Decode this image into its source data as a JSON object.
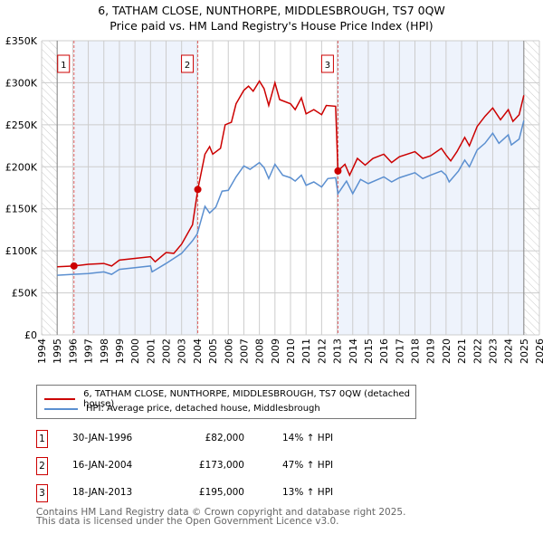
{
  "title": "6, TATHAM CLOSE, NUNTHORPE, MIDDLESBROUGH, TS7 0QW",
  "subtitle": "Price paid vs. HM Land Registry's House Price Index (HPI)",
  "chart_data": {
    "type": "line",
    "ylim": [
      0,
      350000
    ],
    "xlim": [
      1994,
      2026
    ],
    "yticks": [
      {
        "v": 0,
        "label": "£0"
      },
      {
        "v": 50000,
        "label": "£50K"
      },
      {
        "v": 100000,
        "label": "£100K"
      },
      {
        "v": 150000,
        "label": "£150K"
      },
      {
        "v": 200000,
        "label": "£200K"
      },
      {
        "v": 250000,
        "label": "£250K"
      },
      {
        "v": 300000,
        "label": "£300K"
      },
      {
        "v": 350000,
        "label": "£350K"
      }
    ],
    "xticks": [
      "1994",
      "1995",
      "1996",
      "1997",
      "1998",
      "1999",
      "2000",
      "2001",
      "2002",
      "2003",
      "2004",
      "2005",
      "2006",
      "2007",
      "2008",
      "2009",
      "2010",
      "2011",
      "2012",
      "2013",
      "2014",
      "2015",
      "2016",
      "2017",
      "2018",
      "2019",
      "2020",
      "2021",
      "2022",
      "2023",
      "2024",
      "2025",
      "2026"
    ],
    "data_range": [
      1995,
      2025
    ],
    "shaded_bands": [
      [
        1996.08,
        2004.04
      ],
      [
        2013.05,
        2025
      ]
    ],
    "series": [
      {
        "name": "6, TATHAM CLOSE, NUNTHORPE, MIDDLESBROUGH, TS7 0QW (detached house)",
        "color": "#cc0000",
        "x": [
          1995,
          1996.08,
          1997,
          1998,
          1998.5,
          1999,
          2000,
          2001,
          2001.3,
          2002,
          2002.5,
          2003,
          2003.7,
          2004.04,
          2004.5,
          2004.8,
          2005,
          2005.5,
          2005.8,
          2006.2,
          2006.5,
          2007,
          2007.3,
          2007.6,
          2008,
          2008.3,
          2008.6,
          2009,
          2009.3,
          2010,
          2010.3,
          2010.7,
          2011,
          2011.5,
          2012,
          2012.3,
          2012.9,
          2013.05,
          2013.5,
          2013.8,
          2014.3,
          2014.8,
          2015.3,
          2016,
          2016.5,
          2017,
          2018,
          2018.5,
          2019,
          2019.7,
          2020,
          2020.3,
          2020.7,
          2021.2,
          2021.5,
          2022,
          2022.5,
          2023,
          2023.5,
          2024,
          2024.3,
          2024.7,
          2025
        ],
        "y": [
          81000,
          82000,
          84000,
          85000,
          82000,
          89000,
          91000,
          93000,
          87000,
          98000,
          97000,
          108000,
          131000,
          173000,
          215000,
          224000,
          215000,
          222000,
          250000,
          253000,
          275000,
          291000,
          296000,
          290000,
          302000,
          293000,
          273000,
          300000,
          280000,
          275000,
          268000,
          282000,
          263000,
          268000,
          262000,
          273000,
          272000,
          195000,
          203000,
          190000,
          210000,
          202000,
          210000,
          215000,
          205000,
          212000,
          218000,
          210000,
          213000,
          222000,
          214000,
          207000,
          218000,
          235000,
          225000,
          248000,
          260000,
          270000,
          256000,
          268000,
          254000,
          262000,
          285000
        ]
      },
      {
        "name": "HPI: Average price, detached house, Middlesbrough",
        "color": "#5b8fd0",
        "x": [
          1995,
          1996,
          1997,
          1998,
          1998.5,
          1999,
          2000,
          2001,
          2001.1,
          2002,
          2003,
          2003.7,
          2004,
          2004.5,
          2004.8,
          2005.2,
          2005.6,
          2006,
          2006.5,
          2007,
          2007.4,
          2008,
          2008.3,
          2008.6,
          2009,
          2009.5,
          2010,
          2010.3,
          2010.7,
          2011,
          2011.5,
          2012,
          2012.4,
          2012.9,
          2013.05,
          2013.6,
          2014,
          2014.5,
          2015,
          2016,
          2016.5,
          2017,
          2018,
          2018.5,
          2019,
          2019.7,
          2020,
          2020.2,
          2020.8,
          2021.2,
          2021.5,
          2022,
          2022.5,
          2023,
          2023.4,
          2024,
          2024.2,
          2024.7,
          2025
        ],
        "y": [
          71000,
          72000,
          73000,
          75000,
          72000,
          78000,
          80000,
          82000,
          75000,
          85000,
          97000,
          112000,
          120000,
          153000,
          145000,
          152000,
          171000,
          172000,
          188000,
          201000,
          197000,
          205000,
          199000,
          186000,
          203000,
          190000,
          187000,
          183000,
          190000,
          178000,
          182000,
          176000,
          186000,
          187000,
          168000,
          183000,
          168000,
          185000,
          180000,
          188000,
          182000,
          187000,
          193000,
          186000,
          190000,
          195000,
          190000,
          182000,
          195000,
          208000,
          200000,
          220000,
          228000,
          240000,
          228000,
          238000,
          226000,
          233000,
          255000
        ]
      }
    ],
    "markers": [
      {
        "label": "1",
        "x": 1996.08,
        "y": 82000
      },
      {
        "label": "2",
        "x": 2004.04,
        "y": 173000
      },
      {
        "label": "3",
        "x": 2013.05,
        "y": 195000
      }
    ]
  },
  "transactions": [
    {
      "num": "1",
      "date": "30-JAN-1996",
      "price": "£82,000",
      "hpi": "14% ↑ HPI"
    },
    {
      "num": "2",
      "date": "16-JAN-2004",
      "price": "£173,000",
      "hpi": "47% ↑ HPI"
    },
    {
      "num": "3",
      "date": "18-JAN-2013",
      "price": "£195,000",
      "hpi": "13% ↑ HPI"
    }
  ],
  "footer": {
    "line1": "Contains HM Land Registry data © Crown copyright and database right 2025.",
    "line2": "This data is licensed under the Open Government Licence v3.0."
  }
}
